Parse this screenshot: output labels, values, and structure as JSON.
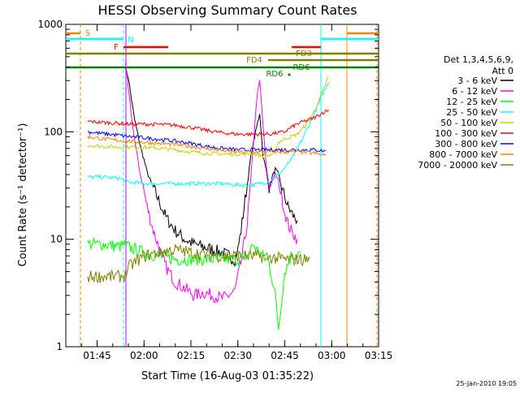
{
  "chart_data": {
    "type": "line",
    "title": "HESSI Observing Summary Count Rates",
    "xlabel": "Start Time (16-Aug-03 01:35:22)",
    "ylabel": "Count Rate (s⁻¹ detector⁻¹)",
    "x_unit": "minutes after 01:35:22",
    "xlim": [
      0,
      100
    ],
    "ylim": [
      1,
      1000
    ],
    "yscale": "log",
    "x_ticks": [
      {
        "value": 10,
        "label": "01:45"
      },
      {
        "value": 25,
        "label": "02:00"
      },
      {
        "value": 40,
        "label": "02:15"
      },
      {
        "value": 55,
        "label": "02:30"
      },
      {
        "value": 70,
        "label": "02:45"
      },
      {
        "value": 85,
        "label": "03:00"
      },
      {
        "value": 100,
        "label": "03:15"
      }
    ],
    "y_ticks": [
      {
        "value": 1,
        "label": "1"
      },
      {
        "value": 10,
        "label": "10"
      },
      {
        "value": 100,
        "label": "100"
      },
      {
        "value": 1000,
        "label": "1000"
      }
    ],
    "legend": {
      "placement": "right",
      "header": [
        "Det 1,3,4,5,6,9,",
        "Att 0"
      ]
    },
    "timestamp": "25-Jan-2010 19:05",
    "series": [
      {
        "name": "3 - 6 keV",
        "color": "#000000",
        "x": [
          19,
          20,
          21,
          22,
          23,
          24,
          25,
          26,
          28,
          30,
          32,
          35,
          38,
          41,
          44,
          47,
          50,
          52,
          54,
          55,
          56,
          57,
          58,
          59,
          60,
          61,
          62,
          63,
          64,
          65,
          66,
          67,
          68,
          69,
          70,
          71,
          72,
          73,
          74
        ],
        "values": [
          400,
          320,
          200,
          130,
          95,
          70,
          55,
          42,
          30,
          22,
          16,
          12,
          10,
          9,
          8.5,
          8,
          7.5,
          7,
          6.5,
          8,
          12,
          20,
          32,
          55,
          80,
          110,
          150,
          60,
          45,
          30,
          38,
          45,
          40,
          30,
          25,
          20,
          18,
          16,
          15
        ]
      },
      {
        "name": "6 - 12 keV",
        "color": "#ff00ff",
        "x": [
          19,
          20,
          21,
          22,
          23,
          24,
          25,
          26,
          28,
          30,
          32,
          35,
          38,
          41,
          44,
          47,
          50,
          52,
          54,
          56,
          58,
          59,
          60,
          61,
          62,
          63,
          64,
          65,
          66,
          67,
          68,
          69,
          70,
          71,
          72,
          73,
          74
        ],
        "values": [
          450,
          250,
          140,
          85,
          55,
          38,
          28,
          20,
          12,
          8,
          5.5,
          4,
          3.5,
          3,
          3.2,
          3,
          2.8,
          3,
          3.3,
          6,
          14,
          32,
          80,
          200,
          300,
          120,
          50,
          30,
          35,
          40,
          35,
          25,
          18,
          14,
          12,
          11,
          10
        ]
      },
      {
        "name": "12 - 25 keV",
        "color": "#00ff00",
        "x": [
          7,
          12,
          17,
          19,
          20,
          25,
          30,
          35,
          40,
          45,
          50,
          55,
          58,
          59,
          60,
          61,
          63,
          65,
          67,
          68,
          70,
          72,
          75
        ],
        "values": [
          9,
          9,
          8.5,
          9,
          8.5,
          7.5,
          7,
          6.5,
          6.5,
          6.5,
          6.5,
          6.5,
          7,
          8,
          9,
          8,
          7,
          6,
          3,
          1.5,
          5,
          7,
          7.5
        ]
      },
      {
        "name": "25 - 50 keV",
        "color": "#00ffff",
        "x": [
          7,
          12,
          17,
          19,
          20,
          25,
          30,
          35,
          40,
          45,
          50,
          55,
          60,
          62,
          64,
          66,
          68,
          70,
          72,
          74,
          76,
          78,
          80,
          82,
          84
        ],
        "values": [
          38,
          38,
          37,
          35,
          34,
          33,
          33,
          33,
          33,
          33,
          33,
          32,
          32,
          33,
          34,
          36,
          40,
          46,
          55,
          70,
          90,
          120,
          160,
          220,
          290
        ]
      },
      {
        "name": "50 - 100 keV",
        "color": "#cccc00",
        "x": [
          7,
          12,
          17,
          19,
          25,
          30,
          35,
          40,
          45,
          50,
          55,
          60,
          63,
          66,
          68,
          70,
          72,
          74,
          76,
          78,
          80,
          82,
          84
        ],
        "values": [
          75,
          73,
          72,
          72,
          72,
          70,
          68,
          65,
          63,
          62,
          62,
          62,
          60,
          60,
          80,
          86,
          90,
          95,
          110,
          130,
          170,
          230,
          330
        ]
      },
      {
        "name": "100 - 300 keV",
        "color": "#ff0000",
        "x": [
          7,
          12,
          17,
          19,
          25,
          30,
          35,
          40,
          45,
          50,
          55,
          60,
          65,
          70,
          72,
          74,
          76,
          78,
          80,
          82,
          84
        ],
        "values": [
          125,
          122,
          120,
          118,
          118,
          117,
          115,
          110,
          103,
          98,
          95,
          95,
          95,
          100,
          110,
          118,
          125,
          130,
          138,
          150,
          160
        ]
      },
      {
        "name": "300 - 800 keV",
        "color": "#0000ff",
        "x": [
          7,
          12,
          17,
          19,
          25,
          30,
          35,
          40,
          45,
          50,
          55,
          60,
          65,
          70,
          75,
          80,
          83
        ],
        "values": [
          100,
          96,
          93,
          91,
          88,
          85,
          82,
          78,
          73,
          70,
          68,
          68,
          68,
          68,
          68,
          68,
          66
        ]
      },
      {
        "name": "800 - 7000 keV",
        "color": "#ff8000",
        "x": [
          7,
          12,
          17,
          19,
          25,
          30,
          35,
          40,
          45,
          50,
          55,
          60,
          65,
          70,
          75,
          80,
          83
        ],
        "values": [
          90,
          86,
          83,
          82,
          80,
          78,
          76,
          73,
          70,
          67,
          65,
          65,
          65,
          65,
          65,
          63,
          60
        ]
      },
      {
        "name": "7000 - 20000 keV",
        "color": "#808000",
        "x": [
          7,
          12,
          17,
          19,
          20,
          25,
          30,
          35,
          40,
          45,
          50,
          55,
          60,
          65,
          70,
          75,
          78
        ],
        "values": [
          4.5,
          4.5,
          4.5,
          4.6,
          5.5,
          7,
          7.5,
          8,
          7.5,
          7.2,
          7,
          7,
          7,
          6.8,
          6.5,
          6.5,
          6.5
        ]
      }
    ],
    "flags": [
      {
        "label": "S",
        "color": "#ff8000"
      },
      {
        "label": "N",
        "color": "#00ffff"
      },
      {
        "label": "F",
        "color": "#ff0000"
      },
      {
        "label": "FD3",
        "color": "#808000"
      },
      {
        "label": "FD4",
        "color": "#808000"
      },
      {
        "label": "RD6",
        "color": "#008000"
      },
      {
        "label": "RD6",
        "color": "#008000"
      }
    ]
  }
}
